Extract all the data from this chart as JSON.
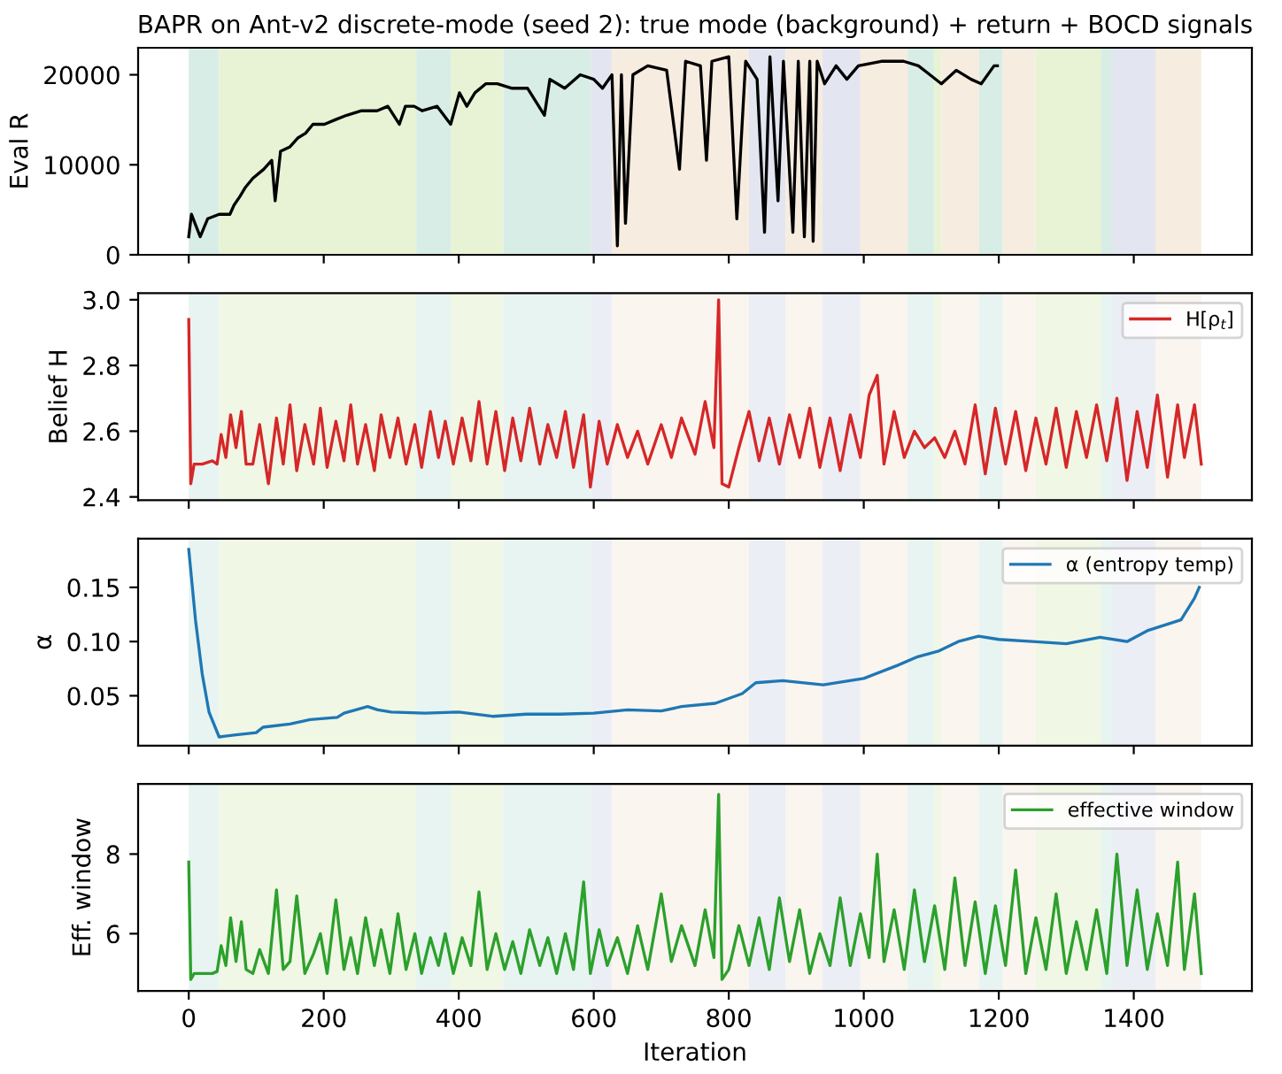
{
  "chart_data": [
    {
      "type": "line",
      "title": "BAPR on Ant-v2 discrete-mode (seed 2): true mode (background) + return + BOCD signals",
      "ylabel": "Eval R",
      "tick_labels": "y",
      "xlim": [
        -75,
        1575
      ],
      "xticks": [
        0,
        200,
        400,
        600,
        800,
        1000,
        1200,
        1400
      ],
      "ylim": [
        0,
        23000
      ],
      "yticks": [
        0,
        10000,
        20000
      ],
      "grid": false,
      "legend": false,
      "series": [
        {
          "color": "#000000",
          "x": [
            0,
            4,
            17,
            28,
            45,
            61,
            67,
            76,
            84,
            95,
            111,
            123,
            128,
            136,
            150,
            162,
            173,
            184,
            201,
            217,
            234,
            256,
            279,
            295,
            312,
            321,
            334,
            346,
            368,
            388,
            401,
            412,
            424,
            440,
            457,
            479,
            502,
            527,
            535,
            557,
            580,
            600,
            613,
            627,
            635,
            641,
            647,
            658,
            680,
            708,
            727,
            736,
            758,
            767,
            775,
            800,
            812,
            825,
            842,
            853,
            861,
            873,
            881,
            895,
            903,
            912,
            920,
            925,
            931,
            942,
            959,
            975,
            992,
            1026,
            1059,
            1081,
            1098,
            1115,
            1137,
            1159,
            1174,
            1193,
            1198
          ],
          "values": [
            2000,
            4500,
            2000,
            4000,
            4500,
            4500,
            5500,
            6500,
            7500,
            8500,
            9500,
            10500,
            6000,
            11500,
            12000,
            13000,
            13500,
            14500,
            14500,
            15000,
            15500,
            16000,
            16000,
            16500,
            14500,
            16500,
            16500,
            16000,
            16500,
            14500,
            18000,
            16500,
            18000,
            19000,
            19000,
            18500,
            18500,
            15500,
            19500,
            18500,
            20000,
            19500,
            18500,
            20000,
            1000,
            20000,
            3500,
            20000,
            21000,
            20500,
            9500,
            21500,
            21000,
            10500,
            21500,
            22000,
            4000,
            21500,
            19500,
            2500,
            22000,
            6000,
            21500,
            2500,
            21500,
            2000,
            21500,
            1500,
            21500,
            19000,
            21000,
            19500,
            21000,
            21500,
            21500,
            21000,
            20000,
            19000,
            20500,
            19500,
            19000,
            21000,
            21000
          ]
        }
      ],
      "bands": [
        {
          "axis": "x",
          "from": 0,
          "to": 45,
          "color": "#d8ede6"
        },
        {
          "axis": "x",
          "from": 45,
          "to": 228,
          "color": "#e8f3d6"
        },
        {
          "axis": "x",
          "from": 228,
          "to": 337,
          "color": "#e8f3d6"
        },
        {
          "axis": "x",
          "from": 337,
          "to": 388,
          "color": "#d8ede6"
        },
        {
          "axis": "x",
          "from": 388,
          "to": 466,
          "color": "#e8f3d6"
        },
        {
          "axis": "x",
          "from": 466,
          "to": 596,
          "color": "#d8ede6"
        },
        {
          "axis": "x",
          "from": 596,
          "to": 627,
          "color": "#e3e5f1"
        },
        {
          "axis": "x",
          "from": 627,
          "to": 830,
          "color": "#f7ece0"
        },
        {
          "axis": "x",
          "from": 830,
          "to": 884,
          "color": "#e3e5f1"
        },
        {
          "axis": "x",
          "from": 884,
          "to": 939,
          "color": "#f7ece0"
        },
        {
          "axis": "x",
          "from": 939,
          "to": 995,
          "color": "#e3e5f1"
        },
        {
          "axis": "x",
          "from": 995,
          "to": 1065,
          "color": "#f7ece0"
        },
        {
          "axis": "x",
          "from": 1065,
          "to": 1104,
          "color": "#d8ede6"
        },
        {
          "axis": "x",
          "from": 1104,
          "to": 1115,
          "color": "#e8f3d6"
        },
        {
          "axis": "x",
          "from": 1115,
          "to": 1171,
          "color": "#f7ece0"
        },
        {
          "axis": "x",
          "from": 1171,
          "to": 1206,
          "color": "#d8ede6"
        },
        {
          "axis": "x",
          "from": 1206,
          "to": 1254,
          "color": "#f7ece0"
        },
        {
          "axis": "x",
          "from": 1254,
          "to": 1352,
          "color": "#e8f3d6"
        },
        {
          "axis": "x",
          "from": 1352,
          "to": 1369,
          "color": "#d8ede6"
        },
        {
          "axis": "x",
          "from": 1369,
          "to": 1432,
          "color": "#e3e5f1"
        },
        {
          "axis": "x",
          "from": 1432,
          "to": 1500,
          "color": "#f7ece0"
        }
      ]
    },
    {
      "type": "line",
      "ylabel": "Belief H",
      "tick_labels": "y",
      "xlim": [
        -75,
        1575
      ],
      "xticks": [
        0,
        200,
        400,
        600,
        800,
        1000,
        1200,
        1400
      ],
      "ylim": [
        2.39,
        3.02
      ],
      "yticks": [
        2.4,
        2.6,
        2.8,
        {
          "value": 3.0,
          "label": "3.0"
        }
      ],
      "grid": false,
      "legend": "top right",
      "series": [
        {
          "name": "H[ρ$_{t}$]",
          "color": "#d62728",
          "x": [
            0,
            3,
            8,
            20,
            35,
            42,
            48,
            55,
            62,
            70,
            78,
            85,
            95,
            105,
            118,
            130,
            140,
            150,
            160,
            172,
            185,
            195,
            205,
            218,
            230,
            240,
            250,
            262,
            275,
            285,
            298,
            310,
            322,
            335,
            345,
            358,
            370,
            380,
            392,
            405,
            418,
            430,
            442,
            455,
            468,
            480,
            492,
            505,
            520,
            532,
            545,
            558,
            570,
            585,
            595,
            608,
            620,
            635,
            650,
            665,
            680,
            700,
            715,
            730,
            750,
            765,
            778,
            785,
            790,
            800,
            815,
            830,
            845,
            860,
            875,
            890,
            905,
            920,
            935,
            950,
            965,
            980,
            995,
            1008,
            1020,
            1030,
            1045,
            1060,
            1075,
            1090,
            1105,
            1120,
            1135,
            1150,
            1165,
            1180,
            1195,
            1210,
            1225,
            1240,
            1255,
            1270,
            1285,
            1300,
            1315,
            1330,
            1345,
            1360,
            1375,
            1390,
            1405,
            1420,
            1435,
            1450,
            1465,
            1475,
            1490,
            1500
          ],
          "values": [
            2.94,
            2.44,
            2.5,
            2.5,
            2.51,
            2.5,
            2.59,
            2.52,
            2.65,
            2.55,
            2.66,
            2.5,
            2.5,
            2.62,
            2.44,
            2.64,
            2.5,
            2.68,
            2.48,
            2.62,
            2.5,
            2.67,
            2.49,
            2.63,
            2.51,
            2.68,
            2.5,
            2.62,
            2.48,
            2.65,
            2.52,
            2.64,
            2.5,
            2.62,
            2.49,
            2.66,
            2.52,
            2.63,
            2.5,
            2.64,
            2.51,
            2.69,
            2.5,
            2.66,
            2.48,
            2.64,
            2.51,
            2.67,
            2.5,
            2.62,
            2.52,
            2.66,
            2.49,
            2.65,
            2.43,
            2.63,
            2.5,
            2.62,
            2.52,
            2.6,
            2.5,
            2.62,
            2.52,
            2.64,
            2.53,
            2.69,
            2.55,
            3.0,
            2.44,
            2.43,
            2.55,
            2.66,
            2.51,
            2.64,
            2.5,
            2.65,
            2.52,
            2.67,
            2.49,
            2.64,
            2.48,
            2.65,
            2.52,
            2.71,
            2.77,
            2.5,
            2.66,
            2.52,
            2.6,
            2.55,
            2.58,
            2.52,
            2.6,
            2.5,
            2.68,
            2.47,
            2.67,
            2.5,
            2.66,
            2.48,
            2.64,
            2.5,
            2.67,
            2.49,
            2.66,
            2.52,
            2.68,
            2.51,
            2.7,
            2.45,
            2.66,
            2.49,
            2.71,
            2.46,
            2.68,
            2.52,
            2.68,
            2.5
          ]
        }
      ],
      "bands": [
        {
          "axis": "x",
          "from": 0,
          "to": 45,
          "color": "#e7f4f1"
        },
        {
          "axis": "x",
          "from": 45,
          "to": 228,
          "color": "#f0f7e5"
        },
        {
          "axis": "x",
          "from": 228,
          "to": 337,
          "color": "#f0f7e5"
        },
        {
          "axis": "x",
          "from": 337,
          "to": 388,
          "color": "#e7f4f1"
        },
        {
          "axis": "x",
          "from": 388,
          "to": 466,
          "color": "#f0f7e5"
        },
        {
          "axis": "x",
          "from": 466,
          "to": 596,
          "color": "#e7f4f1"
        },
        {
          "axis": "x",
          "from": 596,
          "to": 627,
          "color": "#eceef6"
        },
        {
          "axis": "x",
          "from": 627,
          "to": 830,
          "color": "#faf5ef"
        },
        {
          "axis": "x",
          "from": 830,
          "to": 884,
          "color": "#eceef6"
        },
        {
          "axis": "x",
          "from": 884,
          "to": 939,
          "color": "#faf5ef"
        },
        {
          "axis": "x",
          "from": 939,
          "to": 995,
          "color": "#eceef6"
        },
        {
          "axis": "x",
          "from": 995,
          "to": 1065,
          "color": "#faf5ef"
        },
        {
          "axis": "x",
          "from": 1065,
          "to": 1104,
          "color": "#e7f4f1"
        },
        {
          "axis": "x",
          "from": 1104,
          "to": 1115,
          "color": "#f0f7e5"
        },
        {
          "axis": "x",
          "from": 1115,
          "to": 1171,
          "color": "#faf5ef"
        },
        {
          "axis": "x",
          "from": 1171,
          "to": 1206,
          "color": "#e7f4f1"
        },
        {
          "axis": "x",
          "from": 1206,
          "to": 1254,
          "color": "#faf5ef"
        },
        {
          "axis": "x",
          "from": 1254,
          "to": 1352,
          "color": "#f0f7e5"
        },
        {
          "axis": "x",
          "from": 1352,
          "to": 1369,
          "color": "#e7f4f1"
        },
        {
          "axis": "x",
          "from": 1369,
          "to": 1432,
          "color": "#eceef6"
        },
        {
          "axis": "x",
          "from": 1432,
          "to": 1500,
          "color": "#faf5ef"
        }
      ]
    },
    {
      "type": "line",
      "ylabel": "α",
      "tick_labels": "y",
      "xlim": [
        -75,
        1575
      ],
      "xticks": [
        0,
        200,
        400,
        600,
        800,
        1000,
        1200,
        1400
      ],
      "ylim": [
        0.004,
        0.195
      ],
      "yticks": [
        0.05,
        {
          "value": 0.1,
          "label": "0.10"
        },
        0.15
      ],
      "grid": false,
      "legend": "top right",
      "series": [
        {
          "name": "α (entropy temp)",
          "color": "#1f77b4",
          "x": [
            0,
            10,
            20,
            30,
            45,
            70,
            100,
            110,
            150,
            180,
            220,
            230,
            265,
            280,
            300,
            350,
            400,
            450,
            500,
            550,
            600,
            650,
            700,
            730,
            780,
            820,
            840,
            880,
            940,
            1000,
            1050,
            1080,
            1110,
            1140,
            1170,
            1200,
            1250,
            1300,
            1350,
            1390,
            1420,
            1470,
            1490,
            1497
          ],
          "values": [
            0.185,
            0.12,
            0.07,
            0.035,
            0.012,
            0.014,
            0.016,
            0.021,
            0.024,
            0.028,
            0.03,
            0.034,
            0.04,
            0.037,
            0.035,
            0.034,
            0.035,
            0.031,
            0.033,
            0.033,
            0.034,
            0.037,
            0.036,
            0.04,
            0.043,
            0.052,
            0.062,
            0.064,
            0.06,
            0.066,
            0.078,
            0.086,
            0.091,
            0.1,
            0.105,
            0.102,
            0.1,
            0.098,
            0.104,
            0.1,
            0.11,
            0.12,
            0.14,
            0.15
          ]
        }
      ],
      "bands": [
        {
          "axis": "x",
          "from": 0,
          "to": 45,
          "color": "#e7f4f1"
        },
        {
          "axis": "x",
          "from": 45,
          "to": 228,
          "color": "#f0f7e5"
        },
        {
          "axis": "x",
          "from": 228,
          "to": 337,
          "color": "#f0f7e5"
        },
        {
          "axis": "x",
          "from": 337,
          "to": 388,
          "color": "#e7f4f1"
        },
        {
          "axis": "x",
          "from": 388,
          "to": 466,
          "color": "#f0f7e5"
        },
        {
          "axis": "x",
          "from": 466,
          "to": 596,
          "color": "#e7f4f1"
        },
        {
          "axis": "x",
          "from": 596,
          "to": 627,
          "color": "#eceef6"
        },
        {
          "axis": "x",
          "from": 627,
          "to": 830,
          "color": "#faf5ef"
        },
        {
          "axis": "x",
          "from": 830,
          "to": 884,
          "color": "#eceef6"
        },
        {
          "axis": "x",
          "from": 884,
          "to": 939,
          "color": "#faf5ef"
        },
        {
          "axis": "x",
          "from": 939,
          "to": 995,
          "color": "#eceef6"
        },
        {
          "axis": "x",
          "from": 995,
          "to": 1065,
          "color": "#faf5ef"
        },
        {
          "axis": "x",
          "from": 1065,
          "to": 1104,
          "color": "#e7f4f1"
        },
        {
          "axis": "x",
          "from": 1104,
          "to": 1115,
          "color": "#f0f7e5"
        },
        {
          "axis": "x",
          "from": 1115,
          "to": 1171,
          "color": "#faf5ef"
        },
        {
          "axis": "x",
          "from": 1171,
          "to": 1206,
          "color": "#e7f4f1"
        },
        {
          "axis": "x",
          "from": 1206,
          "to": 1254,
          "color": "#faf5ef"
        },
        {
          "axis": "x",
          "from": 1254,
          "to": 1352,
          "color": "#f0f7e5"
        },
        {
          "axis": "x",
          "from": 1352,
          "to": 1369,
          "color": "#e7f4f1"
        },
        {
          "axis": "x",
          "from": 1369,
          "to": 1432,
          "color": "#eceef6"
        },
        {
          "axis": "x",
          "from": 1432,
          "to": 1500,
          "color": "#faf5ef"
        }
      ]
    },
    {
      "type": "line",
      "ylabel": "Eff. window",
      "xlabel": "Iteration",
      "xlim": [
        -75,
        1575
      ],
      "xticks": [
        0,
        200,
        400,
        600,
        800,
        1000,
        1200,
        1400
      ],
      "ylim": [
        4.56,
        9.76
      ],
      "yticks": [
        6,
        8
      ],
      "grid": false,
      "legend": "top right",
      "series": [
        {
          "name": "effective window",
          "color": "#2ca02c",
          "x": [
            0,
            3,
            8,
            20,
            35,
            42,
            48,
            55,
            62,
            70,
            78,
            85,
            95,
            105,
            118,
            130,
            140,
            150,
            160,
            172,
            185,
            195,
            205,
            218,
            230,
            240,
            250,
            262,
            275,
            285,
            298,
            310,
            322,
            335,
            345,
            358,
            370,
            380,
            392,
            405,
            418,
            430,
            442,
            455,
            468,
            480,
            492,
            505,
            520,
            532,
            545,
            558,
            570,
            585,
            595,
            608,
            620,
            635,
            650,
            665,
            680,
            700,
            715,
            730,
            750,
            765,
            778,
            785,
            790,
            800,
            815,
            830,
            845,
            860,
            875,
            890,
            905,
            920,
            935,
            950,
            965,
            980,
            995,
            1008,
            1020,
            1030,
            1045,
            1060,
            1075,
            1090,
            1105,
            1120,
            1135,
            1150,
            1165,
            1180,
            1195,
            1210,
            1225,
            1240,
            1255,
            1270,
            1285,
            1300,
            1315,
            1330,
            1345,
            1360,
            1375,
            1390,
            1405,
            1420,
            1435,
            1450,
            1465,
            1475,
            1490,
            1500
          ],
          "values": [
            7.8,
            4.85,
            5.0,
            5.0,
            5.0,
            5.05,
            5.7,
            5.2,
            6.4,
            5.3,
            6.3,
            5.1,
            5.0,
            5.6,
            5.0,
            7.1,
            5.1,
            5.3,
            6.95,
            5.0,
            5.5,
            6.0,
            5.0,
            6.85,
            5.1,
            5.9,
            5.0,
            6.4,
            5.2,
            6.1,
            5.0,
            6.5,
            5.1,
            6.0,
            5.0,
            5.9,
            5.2,
            6.0,
            5.0,
            5.9,
            5.2,
            7.05,
            5.1,
            6.0,
            5.1,
            5.8,
            5.0,
            6.1,
            5.2,
            5.9,
            5.0,
            6.0,
            5.1,
            7.3,
            5.0,
            6.1,
            5.2,
            5.9,
            5.0,
            6.2,
            5.1,
            7.0,
            5.3,
            6.2,
            5.2,
            6.6,
            5.4,
            9.5,
            4.85,
            5.1,
            6.2,
            5.2,
            6.4,
            5.1,
            6.9,
            5.3,
            6.6,
            5.0,
            6.0,
            5.2,
            6.9,
            5.2,
            6.5,
            5.4,
            8.0,
            5.3,
            6.6,
            5.1,
            7.1,
            5.3,
            6.7,
            5.1,
            7.4,
            5.2,
            6.8,
            5.0,
            6.7,
            5.2,
            7.6,
            5.0,
            6.4,
            5.1,
            7.0,
            5.0,
            6.3,
            5.1,
            6.6,
            5.0,
            8.0,
            5.2,
            7.1,
            5.1,
            6.5,
            5.2,
            7.8,
            5.1,
            7.0,
            5.0
          ]
        }
      ],
      "bands": [
        {
          "axis": "x",
          "from": 0,
          "to": 45,
          "color": "#e7f4f1"
        },
        {
          "axis": "x",
          "from": 45,
          "to": 228,
          "color": "#f0f7e5"
        },
        {
          "axis": "x",
          "from": 228,
          "to": 337,
          "color": "#f0f7e5"
        },
        {
          "axis": "x",
          "from": 337,
          "to": 388,
          "color": "#e7f4f1"
        },
        {
          "axis": "x",
          "from": 388,
          "to": 466,
          "color": "#f0f7e5"
        },
        {
          "axis": "x",
          "from": 466,
          "to": 596,
          "color": "#e7f4f1"
        },
        {
          "axis": "x",
          "from": 596,
          "to": 627,
          "color": "#eceef6"
        },
        {
          "axis": "x",
          "from": 627,
          "to": 830,
          "color": "#faf5ef"
        },
        {
          "axis": "x",
          "from": 830,
          "to": 884,
          "color": "#eceef6"
        },
        {
          "axis": "x",
          "from": 884,
          "to": 939,
          "color": "#faf5ef"
        },
        {
          "axis": "x",
          "from": 939,
          "to": 995,
          "color": "#eceef6"
        },
        {
          "axis": "x",
          "from": 995,
          "to": 1065,
          "color": "#faf5ef"
        },
        {
          "axis": "x",
          "from": 1065,
          "to": 1104,
          "color": "#e7f4f1"
        },
        {
          "axis": "x",
          "from": 1104,
          "to": 1115,
          "color": "#f0f7e5"
        },
        {
          "axis": "x",
          "from": 1115,
          "to": 1171,
          "color": "#faf5ef"
        },
        {
          "axis": "x",
          "from": 1171,
          "to": 1206,
          "color": "#e7f4f1"
        },
        {
          "axis": "x",
          "from": 1206,
          "to": 1254,
          "color": "#faf5ef"
        },
        {
          "axis": "x",
          "from": 1254,
          "to": 1352,
          "color": "#f0f7e5"
        },
        {
          "axis": "x",
          "from": 1352,
          "to": 1369,
          "color": "#e7f4f1"
        },
        {
          "axis": "x",
          "from": 1369,
          "to": 1432,
          "color": "#eceef6"
        },
        {
          "axis": "x",
          "from": 1432,
          "to": 1500,
          "color": "#faf5ef"
        }
      ]
    }
  ]
}
